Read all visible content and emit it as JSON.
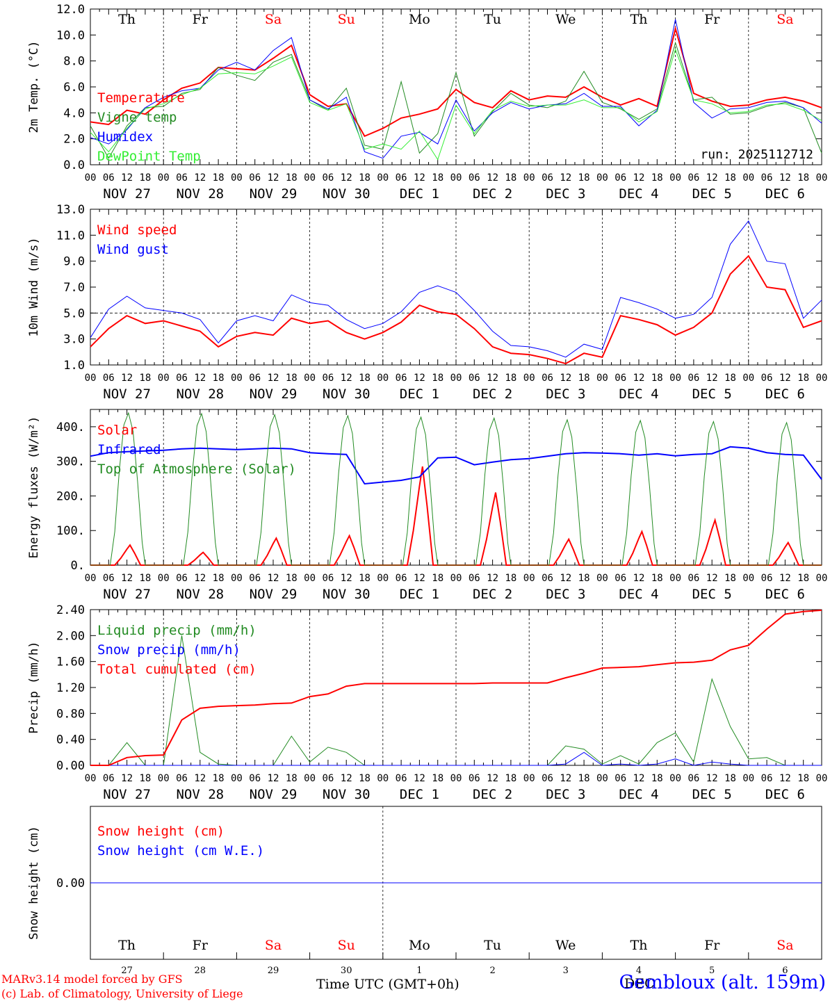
{
  "run_label": "run: 2025112712",
  "date_labels": [
    "NOV 27",
    "NOV 28",
    "NOV 29",
    "NOV 30",
    "DEC  1",
    "DEC  2",
    "DEC  3",
    "DEC  4",
    "DEC  5",
    "DEC  6"
  ],
  "hour_ticks": [
    "00",
    "06",
    "12",
    "18"
  ],
  "weekdays": [
    {
      "label": "Th",
      "color": "#000000"
    },
    {
      "label": "Fr",
      "color": "#000000"
    },
    {
      "label": "Sa",
      "color": "#ff0000"
    },
    {
      "label": "Su",
      "color": "#ff0000"
    },
    {
      "label": "Mo",
      "color": "#000000"
    },
    {
      "label": "Tu",
      "color": "#000000"
    },
    {
      "label": "We",
      "color": "#000000"
    },
    {
      "label": "Th",
      "color": "#000000"
    },
    {
      "label": "Fr",
      "color": "#000000"
    },
    {
      "label": "Sa",
      "color": "#ff0000"
    }
  ],
  "day_numbers": [
    "27",
    "28",
    "29",
    "30",
    "1",
    "2",
    "3",
    "4",
    "5",
    "6"
  ],
  "footer": {
    "credit_line1": "MARv3.14 model forced by GFS",
    "credit_line2": "(c) Lab. of Climatology, University of Liege",
    "xlabel": "Time UTC (GMT+0h)",
    "month_label": "DEC",
    "station": "Gembloux (alt. 159m)"
  },
  "colors": {
    "red": "#ff0000",
    "green": "#228b22",
    "blue": "#0000ff",
    "lime": "#33ee33"
  },
  "chart_data": [
    {
      "type": "line",
      "ylabel": "2m Temp. (°C)",
      "ylim": [
        0,
        12
      ],
      "yticks": [
        "0.0",
        "2.0",
        "4.0",
        "6.0",
        "8.0",
        "10.0",
        "12.0"
      ],
      "x_hours": [
        0,
        6,
        12,
        18,
        24,
        30,
        36,
        42,
        48,
        54,
        60,
        66,
        72,
        78,
        84,
        90,
        96,
        102,
        108,
        114,
        120,
        126,
        132,
        138,
        144,
        150,
        156,
        162,
        168,
        174,
        180,
        186,
        192,
        198,
        204,
        210,
        216,
        222,
        228,
        234,
        240
      ],
      "series": [
        {
          "name": "Temperature",
          "color": "#ff0000",
          "width": 2,
          "values": [
            3.3,
            3.1,
            4.2,
            3.9,
            5.0,
            5.9,
            6.3,
            7.5,
            7.4,
            7.3,
            8.2,
            9.2,
            5.4,
            4.5,
            4.7,
            2.2,
            2.8,
            3.6,
            3.9,
            4.3,
            5.8,
            4.8,
            4.4,
            5.7,
            5.0,
            5.3,
            5.2,
            6.0,
            5.2,
            4.6,
            5.1,
            4.5,
            10.5,
            5.5,
            4.9,
            4.5,
            4.6,
            5.0,
            5.2,
            4.9,
            4.4
          ]
        },
        {
          "name": "Vigne temp",
          "color": "#228b22",
          "width": 1,
          "values": [
            3.0,
            0.5,
            3.0,
            4.4,
            4.5,
            5.5,
            5.8,
            7.5,
            6.9,
            6.5,
            7.9,
            8.5,
            5.0,
            4.2,
            5.9,
            1.5,
            1.2,
            6.4,
            0.9,
            2.4,
            7.1,
            2.2,
            4.1,
            5.5,
            4.6,
            4.4,
            4.9,
            7.2,
            4.8,
            4.3,
            3.5,
            4.3,
            9.4,
            5.0,
            5.2,
            3.9,
            4.0,
            4.5,
            4.8,
            4.4,
            0.9
          ]
        },
        {
          "name": "Humidex",
          "color": "#0000ff",
          "width": 1,
          "values": [
            2.1,
            1.6,
            2.7,
            4.4,
            5.2,
            5.7,
            5.9,
            7.3,
            7.9,
            7.3,
            8.8,
            9.8,
            5.0,
            4.3,
            5.2,
            1.0,
            0.5,
            2.2,
            2.5,
            1.6,
            5.0,
            2.6,
            4.0,
            4.8,
            4.3,
            4.6,
            4.7,
            5.5,
            4.5,
            4.5,
            3.0,
            4.2,
            11.2,
            4.8,
            3.6,
            4.3,
            4.4,
            4.8,
            4.9,
            4.4,
            3.2
          ]
        },
        {
          "name": "DewPoint Temp",
          "color": "#33ee33",
          "width": 1,
          "values": [
            2.5,
            1.0,
            2.8,
            4.3,
            4.7,
            5.4,
            5.9,
            7.0,
            7.1,
            7.0,
            7.6,
            8.3,
            4.8,
            4.2,
            4.7,
            1.2,
            1.6,
            1.2,
            2.6,
            0.4,
            4.6,
            2.4,
            4.2,
            4.9,
            4.5,
            4.6,
            4.6,
            5.0,
            4.4,
            4.4,
            3.3,
            4.1,
            8.9,
            5.0,
            4.7,
            4.0,
            4.1,
            4.6,
            4.7,
            4.2,
            3.4
          ]
        }
      ],
      "legend": [
        "Temperature",
        "Vigne temp",
        "Humidex",
        "DewPoint Temp"
      ],
      "legend_position": "top-left"
    },
    {
      "type": "line",
      "ylabel": "10m Wind (m/s)",
      "ylim": [
        1,
        13
      ],
      "yticks": [
        "1.0",
        "3.0",
        "5.0",
        "7.0",
        "9.0",
        "11.0",
        "13.0"
      ],
      "reference_line": 5.0,
      "x_hours": [
        0,
        6,
        12,
        18,
        24,
        30,
        36,
        42,
        48,
        54,
        60,
        66,
        72,
        78,
        84,
        90,
        96,
        102,
        108,
        114,
        120,
        126,
        132,
        138,
        144,
        150,
        156,
        162,
        168,
        174,
        180,
        186,
        192,
        198,
        204,
        210,
        216,
        222,
        228,
        234,
        240
      ],
      "series": [
        {
          "name": "Wind speed",
          "color": "#ff0000",
          "width": 2,
          "values": [
            2.4,
            3.8,
            4.8,
            4.2,
            4.4,
            4.0,
            3.6,
            2.4,
            3.2,
            3.5,
            3.3,
            4.6,
            4.2,
            4.4,
            3.5,
            3.0,
            3.5,
            4.3,
            5.6,
            5.1,
            4.9,
            3.8,
            2.4,
            1.9,
            1.8,
            1.5,
            1.1,
            1.9,
            1.6,
            4.8,
            4.5,
            4.1,
            3.3,
            3.9,
            5.0,
            8.0,
            9.4,
            7.0,
            6.8,
            3.9,
            4.4
          ]
        },
        {
          "name": "Wind gust",
          "color": "#0000ff",
          "width": 1,
          "values": [
            3.1,
            5.3,
            6.3,
            5.4,
            5.2,
            5.0,
            4.5,
            2.7,
            4.4,
            4.8,
            4.4,
            6.4,
            5.8,
            5.6,
            4.5,
            3.8,
            4.2,
            5.1,
            6.6,
            7.1,
            6.6,
            5.2,
            3.6,
            2.5,
            2.4,
            2.1,
            1.6,
            2.6,
            2.2,
            6.2,
            5.8,
            5.3,
            4.6,
            4.9,
            6.2,
            10.3,
            12.1,
            9.0,
            8.8,
            4.6,
            6.0
          ]
        }
      ],
      "legend": [
        "Wind speed",
        "Wind gust"
      ],
      "legend_position": "top-left"
    },
    {
      "type": "line",
      "ylabel": "Energy fluxes (W/m²)",
      "ylim": [
        0,
        450
      ],
      "yticks": [
        "0.",
        "100.",
        "200.",
        "300.",
        "400."
      ],
      "yticks_values": [
        0,
        100,
        200,
        300,
        400
      ],
      "series": [
        {
          "name": "Solar",
          "color": "#ff0000",
          "width": 2,
          "daily_peaks": [
            58,
            37,
            78,
            85,
            285,
            210,
            75,
            97,
            130,
            65
          ]
        },
        {
          "name": "Infrared",
          "color": "#0000ff",
          "width": 2,
          "x_hours": [
            0,
            6,
            12,
            18,
            24,
            30,
            36,
            42,
            48,
            54,
            60,
            66,
            72,
            78,
            84,
            90,
            96,
            102,
            108,
            114,
            120,
            126,
            132,
            138,
            144,
            150,
            156,
            162,
            168,
            174,
            180,
            186,
            192,
            198,
            204,
            210,
            216,
            222,
            228,
            234,
            240
          ],
          "values": [
            315,
            325,
            328,
            330,
            332,
            336,
            338,
            336,
            334,
            336,
            338,
            336,
            325,
            322,
            320,
            235,
            240,
            245,
            255,
            310,
            312,
            290,
            298,
            305,
            308,
            315,
            322,
            325,
            324,
            322,
            318,
            322,
            316,
            320,
            322,
            342,
            338,
            325,
            320,
            318,
            248
          ]
        },
        {
          "name": "Top of Atmosphere (Solar)",
          "color": "#228b22",
          "width": 1,
          "daily_peaks": [
            440,
            438,
            435,
            432,
            428,
            425,
            420,
            418,
            415,
            412
          ]
        }
      ],
      "legend": [
        "Solar",
        "Infrared",
        "Top of Atmosphere (Solar)"
      ],
      "legend_position": "top-left"
    },
    {
      "type": "line",
      "ylabel": "Precip (mm/h)",
      "ylim": [
        0,
        2.4
      ],
      "yticks": [
        "0.00",
        "0.40",
        "0.80",
        "1.20",
        "1.60",
        "2.00",
        "2.40"
      ],
      "x_hours": [
        0,
        6,
        12,
        18,
        24,
        30,
        36,
        42,
        48,
        54,
        60,
        66,
        72,
        78,
        84,
        90,
        96,
        102,
        108,
        114,
        120,
        126,
        132,
        138,
        144,
        150,
        156,
        162,
        168,
        174,
        180,
        186,
        192,
        198,
        204,
        210,
        216,
        222,
        228,
        234,
        240
      ],
      "series": [
        {
          "name": "Liquid precip (mm/h)",
          "color": "#228b22",
          "width": 1,
          "values": [
            0,
            0,
            0.35,
            0,
            0,
            2.0,
            0.2,
            0.02,
            0,
            0,
            0,
            0.45,
            0.05,
            0.28,
            0.2,
            0,
            0,
            0,
            0,
            0,
            0,
            0,
            0,
            0,
            0,
            0,
            0.3,
            0.25,
            0.02,
            0.15,
            0.02,
            0.35,
            0.5,
            0.05,
            1.33,
            0.6,
            0.1,
            0.12,
            0,
            0,
            0
          ]
        },
        {
          "name": "Snow precip (mm/h)",
          "color": "#0000ff",
          "width": 1,
          "values": [
            0,
            0,
            0,
            0,
            0,
            0,
            0,
            0,
            0,
            0,
            0,
            0,
            0,
            0,
            0,
            0,
            0,
            0,
            0,
            0,
            0,
            0,
            0,
            0,
            0,
            0,
            0.02,
            0.2,
            0,
            0.02,
            0,
            0.02,
            0.1,
            0,
            0.05,
            0.02,
            0,
            0,
            0,
            0,
            0
          ]
        },
        {
          "name": "Total cumulated (cm)",
          "color": "#ff0000",
          "width": 2,
          "values": [
            0,
            0,
            0.12,
            0.15,
            0.16,
            0.7,
            0.88,
            0.91,
            0.92,
            0.93,
            0.95,
            0.96,
            1.06,
            1.1,
            1.22,
            1.26,
            1.26,
            1.26,
            1.26,
            1.26,
            1.26,
            1.26,
            1.27,
            1.27,
            1.27,
            1.27,
            1.35,
            1.42,
            1.5,
            1.51,
            1.52,
            1.55,
            1.58,
            1.59,
            1.62,
            1.78,
            1.85,
            2.1,
            2.33,
            2.37,
            2.39
          ]
        }
      ],
      "legend": [
        "Liquid precip (mm/h)",
        "Snow precip (mm/h)",
        "Total cumulated (cm)"
      ],
      "legend_position": "top-left"
    },
    {
      "type": "line",
      "ylabel": "Snow height (cm)",
      "ylim": [
        -1,
        1
      ],
      "yticks": [
        "0.00"
      ],
      "yticks_values": [
        0
      ],
      "series": [
        {
          "name": "Snow height (cm)",
          "color": "#ff0000",
          "width": 1,
          "values": [
            0,
            0
          ]
        },
        {
          "name": "Snow height (cm W.E.)",
          "color": "#0000ff",
          "width": 1,
          "values": [
            0,
            0
          ]
        }
      ],
      "legend": [
        "Snow height (cm)",
        "Snow height (cm W.E.)"
      ],
      "legend_position": "top-left"
    }
  ]
}
